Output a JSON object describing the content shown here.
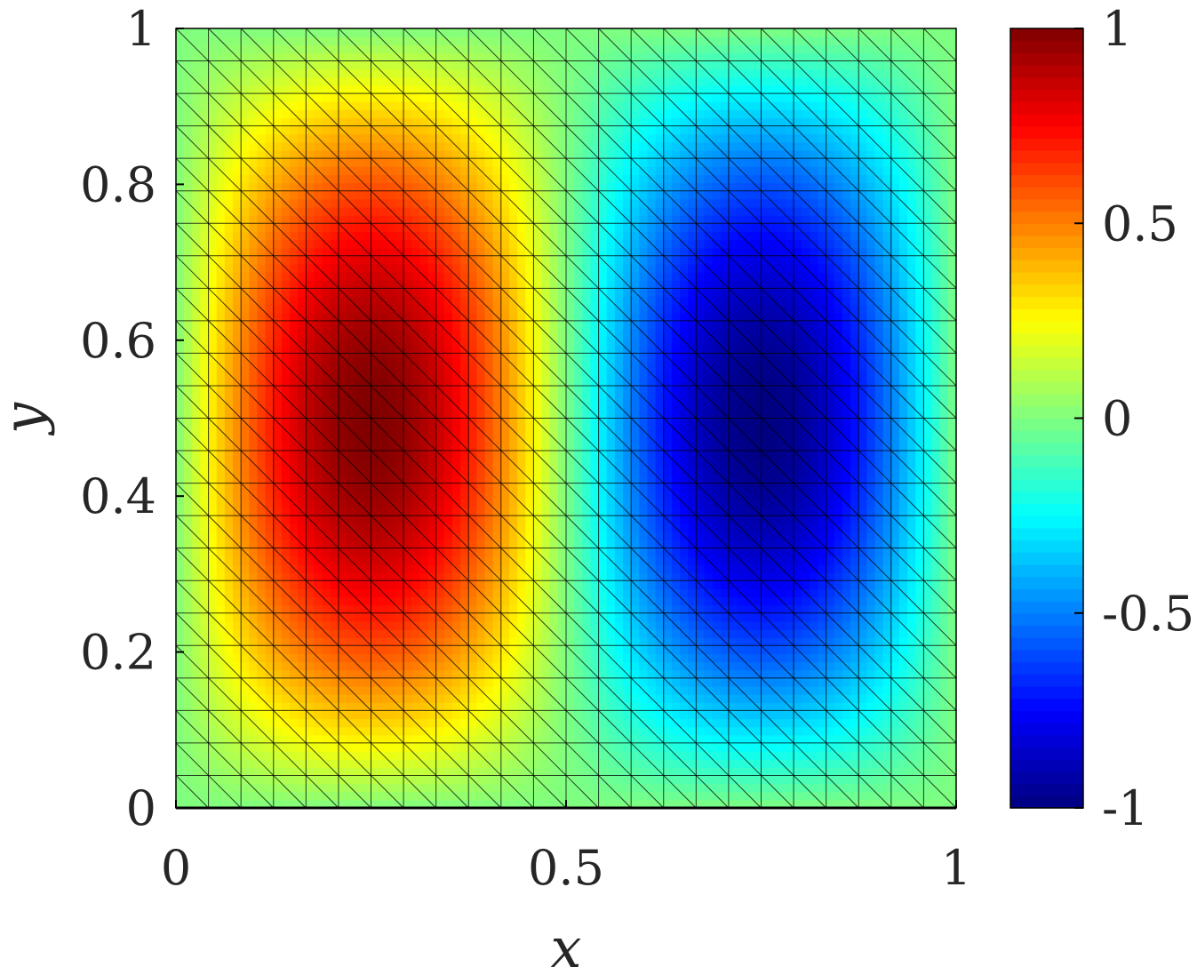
{
  "chart_data": {
    "type": "heatmap",
    "title": "",
    "xlabel": "x",
    "ylabel": "y",
    "xlim": [
      0,
      1
    ],
    "ylim": [
      0,
      1
    ],
    "x_ticks": [
      "0",
      "0.5",
      "1"
    ],
    "y_ticks": [
      "0",
      "0.2",
      "0.4",
      "0.6",
      "0.8",
      "1"
    ],
    "colorbar": {
      "colormap": "jet",
      "range": [
        -1,
        1
      ],
      "ticks": [
        "-1",
        "-0.5",
        "0",
        "0.5",
        "1"
      ]
    },
    "mesh": {
      "divisions_x": 24,
      "divisions_y": 24,
      "element": "triangle",
      "diagonal": "top-left to bottom-right"
    },
    "field": {
      "function": "sin(2*pi*x)*sin(pi*y)",
      "max": {
        "x": 0.25,
        "y": 0.5,
        "value": 1
      },
      "min": {
        "x": 0.75,
        "y": 0.5,
        "value": -1
      }
    },
    "grid": false,
    "legend": "none"
  }
}
